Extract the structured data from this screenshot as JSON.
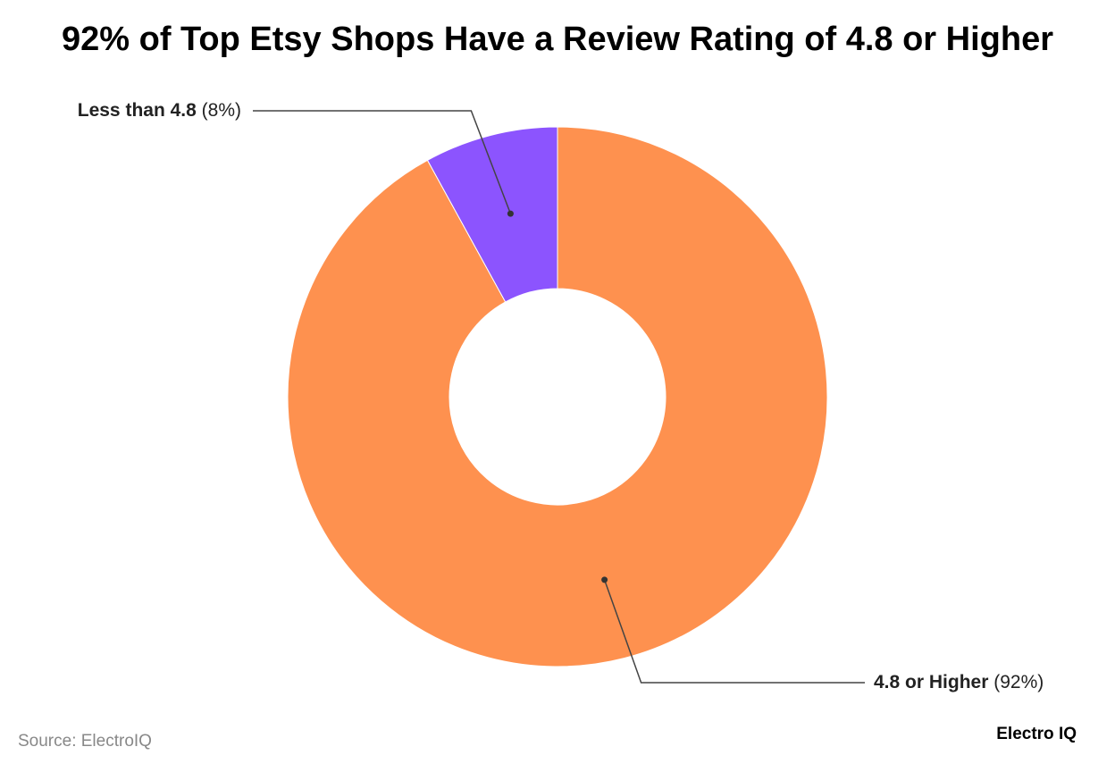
{
  "chart_data": {
    "type": "donut",
    "title": "92% of Top Etsy Shops Have a Review Rating of 4.8 or Higher",
    "categories": [
      "4.8 or Higher",
      "Less than 4.8"
    ],
    "values": [
      92,
      8
    ],
    "value_labels": [
      "(92%)",
      "(8%)"
    ],
    "colors": [
      "#fe914f",
      "#8c54fe"
    ],
    "source": "Source: ElectroIQ",
    "brand": "Electro IQ"
  }
}
